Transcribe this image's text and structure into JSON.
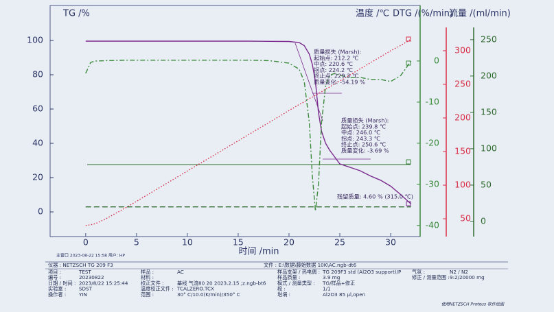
{
  "chart_data": {
    "type": "line",
    "title_main_window": "主窗口  2023-08-22 15:58 用户: HP",
    "xlabel": "时间 /min",
    "ylabel": "TG /%",
    "y2label": "DTG /(%/min)",
    "y3label": "温度 /℃",
    "y4label": "流量 /(ml/min)",
    "x": [
      0,
      0.5,
      1,
      2,
      4,
      6,
      8,
      10,
      12,
      14,
      16,
      18,
      20,
      21,
      21.5,
      22,
      22.3,
      22.6,
      22.9,
      23.2,
      23.6,
      24,
      24.5,
      25,
      26,
      27,
      28,
      29,
      30,
      31,
      32
    ],
    "xlim": [
      -3.5,
      32.9
    ],
    "xticks": [
      0,
      5,
      10,
      15,
      20,
      25,
      30
    ],
    "ylim": [
      -14.4,
      120.4
    ],
    "yticks": [
      0,
      20,
      40,
      60,
      80,
      100
    ],
    "y2lim": [
      -42.7,
      13.5
    ],
    "y2ticks": [
      -40,
      -30,
      -20,
      -10,
      0
    ],
    "y3lim": [
      23.5,
      367.3
    ],
    "y3ticks": [
      50,
      100,
      150,
      200,
      250,
      300
    ],
    "y4lim": [
      -20.8,
      297
    ],
    "y4ticks": [
      0,
      50,
      100,
      150,
      200,
      250
    ],
    "grid": false,
    "series": [
      {
        "name": "TG",
        "color": "#7a2a8c",
        "axis": "y",
        "dash": "none",
        "values": [
          99.6,
          99.6,
          99.6,
          99.6,
          99.6,
          99.6,
          99.6,
          99.6,
          99.6,
          99.6,
          99.6,
          99.5,
          99.4,
          98.8,
          97,
          92,
          86,
          76,
          58,
          47,
          40,
          36,
          32,
          28,
          26,
          24,
          21,
          18.5,
          15,
          10,
          4.6
        ]
      },
      {
        "name": "DTG",
        "color": "#3a8a3a",
        "axis": "y2",
        "dash": "7 3 2 3",
        "values": [
          -3,
          -0.3,
          0,
          0.1,
          0.2,
          0.2,
          0.2,
          0.2,
          0.2,
          0.2,
          0.2,
          0.1,
          -0.5,
          -2,
          -5,
          -15,
          -28,
          -36.5,
          -30,
          -15,
          -6,
          -3.5,
          -3,
          -3.5,
          -4,
          -4,
          -4.5,
          -4.5,
          -5,
          -3.5,
          0
        ]
      },
      {
        "name": "温度",
        "color": "#d83048",
        "axis": "y3",
        "dash": "1.5 2.5",
        "values": [
          40,
          41,
          43,
          50,
          67,
          85,
          103,
          121,
          139,
          157,
          175,
          193,
          211,
          220,
          224,
          229,
          231,
          234,
          236,
          239,
          243,
          246,
          251,
          255,
          264,
          273,
          282,
          291,
          300,
          308,
          317
        ]
      },
      {
        "name": "流量",
        "color": "#2f6a2f",
        "axis": "y4",
        "dash": "8 4",
        "values": [
          20,
          20,
          20,
          20,
          20,
          20,
          20,
          20,
          20,
          20,
          20,
          20,
          20,
          20,
          20,
          20,
          20,
          20,
          20,
          20,
          20,
          20,
          20,
          20,
          20,
          20,
          20,
          20,
          20,
          20,
          20
        ]
      }
    ],
    "annotations": [
      [
        "质量损失 (Marsh):",
        "起始点:   212.2 ℃",
        "中点:     220.6 ℃",
        "拐点:     224.2 ℃",
        "终止点:   229.3 ℃",
        "质量变化: -54.19 %"
      ],
      [
        "质量损失 (Marsh):",
        "起始点:   239.8 ℃",
        "中点:     246.0 ℃",
        "拐点:     243.3 ℃",
        "终止点:   250.6 ℃",
        "质量变化:   -3.69 %"
      ],
      [
        "残留质量: 4.60 % (315.0 ℃)"
      ]
    ]
  },
  "info": {
    "instrument": "仪器 : NETZSCH TG 209 F3",
    "file": "文件 : E:\\数据\\藤始数据 10K\\AC.ngb-dt6",
    "columns": [
      [
        [
          "项目 :",
          "TEST"
        ],
        [
          "编号 :",
          "20230822"
        ],
        [
          "日期 / 时间 :",
          "2023/8/22 15:25:44"
        ],
        [
          "实验室 :",
          "SDST"
        ],
        [
          "操作者 :",
          "YIN"
        ]
      ],
      [
        [
          "样品 :",
          "AC"
        ],
        [
          "材料 :"
        ],
        [
          "校正文件 :",
          "基线 气流80  20  2023.2.15 ;z.ngb-bt6"
        ],
        [
          "温度校正文件 :",
          "TCALZERO.TCX"
        ],
        [
          "范围 :",
          "30° C/10.0(K/min)/350° C"
        ]
      ],
      [
        [
          "样品支架 / 热电偶 :",
          "TG 209F3 std (Al2O3 support)/P"
        ],
        [
          "样品质量 :",
          "3.9 mg"
        ],
        [
          "模式 / 测量类型 :",
          "TG/样品+修正"
        ],
        [
          "段 :",
          "1/1"
        ],
        [
          "坩埚 :",
          "Al2O3 85 µl,open"
        ]
      ],
      [
        [
          "气氛 :",
          "N2 / N2"
        ],
        [
          "修正 / 测量范围 :",
          "9:2/20000 mg"
        ]
      ]
    ],
    "footer": "使用NETZSCH Proteus 软件绘图"
  }
}
